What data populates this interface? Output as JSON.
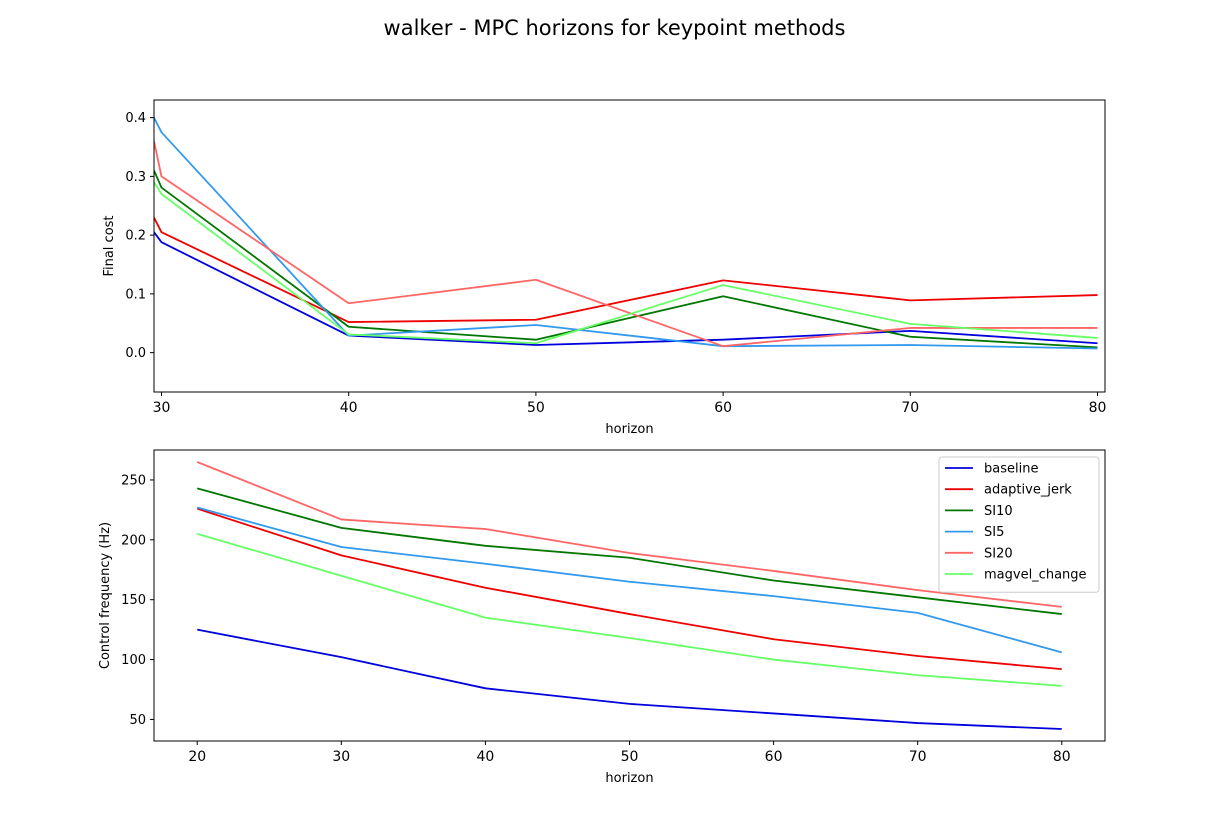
{
  "title": "walker - MPC horizons for keypoint methods",
  "chart_data": [
    {
      "type": "line",
      "xlabel": "horizon",
      "ylabel": "Final cost",
      "xlim": [
        29.6,
        80.4
      ],
      "ylim": [
        -0.067,
        0.43
      ],
      "xticks": [
        30,
        40,
        50,
        60,
        70,
        80
      ],
      "yticks": [
        0.0,
        0.1,
        0.2,
        0.3,
        0.4
      ],
      "ytick_labels": [
        "0.0",
        "0.1",
        "0.2",
        "0.3",
        "0.4"
      ],
      "grid": false,
      "legend": false,
      "series": [
        {
          "name": "baseline",
          "color": "#0000dd",
          "x": [
            29.6,
            30,
            40,
            50,
            60,
            70,
            80
          ],
          "y": [
            0.205,
            0.188,
            0.029,
            0.013,
            0.022,
            0.037,
            0.016
          ]
        },
        {
          "name": "adaptive_jerk",
          "color": "#ee0000",
          "x": [
            29.6,
            30,
            40,
            50,
            60,
            70,
            80
          ],
          "y": [
            0.23,
            0.205,
            0.052,
            0.056,
            0.123,
            0.089,
            0.098
          ]
        },
        {
          "name": "SI10",
          "color": "#007700",
          "x": [
            29.6,
            30,
            40,
            50,
            60,
            70,
            80
          ],
          "y": [
            0.31,
            0.281,
            0.044,
            0.022,
            0.096,
            0.027,
            0.009
          ]
        },
        {
          "name": "SI5",
          "color": "#3399ee",
          "x": [
            29.6,
            30,
            40,
            50,
            60,
            70,
            80
          ],
          "y": [
            0.4,
            0.375,
            0.029,
            0.047,
            0.011,
            0.013,
            0.007
          ]
        },
        {
          "name": "SI20",
          "color": "#ff6666",
          "x": [
            29.6,
            30,
            40,
            50,
            60,
            70,
            80
          ],
          "y": [
            0.36,
            0.3,
            0.084,
            0.124,
            0.011,
            0.042,
            0.042
          ]
        },
        {
          "name": "magvel_change",
          "color": "#66ff66",
          "x": [
            29.6,
            30,
            40,
            50,
            60,
            70,
            80
          ],
          "y": [
            0.29,
            0.27,
            0.031,
            0.016,
            0.115,
            0.049,
            0.025
          ]
        }
      ]
    },
    {
      "type": "line",
      "xlabel": "horizon",
      "ylabel": "Control frequency (Hz)",
      "xlim": [
        17,
        83
      ],
      "ylim": [
        32,
        275
      ],
      "xticks": [
        20,
        30,
        40,
        50,
        60,
        70,
        80
      ],
      "yticks": [
        50,
        100,
        150,
        200,
        250
      ],
      "ytick_labels": [
        "50",
        "100",
        "150",
        "200",
        "250"
      ],
      "grid": false,
      "legend": "top-right",
      "x": [
        20,
        30,
        40,
        50,
        60,
        70,
        80
      ],
      "series": [
        {
          "name": "baseline",
          "color": "#0000dd",
          "values": [
            125,
            102,
            76,
            63,
            55,
            47,
            42
          ]
        },
        {
          "name": "adaptive_jerk",
          "color": "#ee0000",
          "values": [
            226,
            187,
            160,
            138,
            117,
            103,
            92
          ]
        },
        {
          "name": "SI10",
          "color": "#007700",
          "values": [
            243,
            210,
            195,
            185,
            166,
            152,
            138
          ]
        },
        {
          "name": "SI5",
          "color": "#3399ee",
          "values": [
            227,
            194,
            180,
            165,
            153,
            139,
            106
          ]
        },
        {
          "name": "SI20",
          "color": "#ff6666",
          "values": [
            265,
            217,
            209,
            189,
            174,
            158,
            144
          ]
        },
        {
          "name": "magvel_change",
          "color": "#66ff66",
          "values": [
            205,
            170,
            135,
            118,
            100,
            87,
            78
          ]
        }
      ]
    }
  ]
}
